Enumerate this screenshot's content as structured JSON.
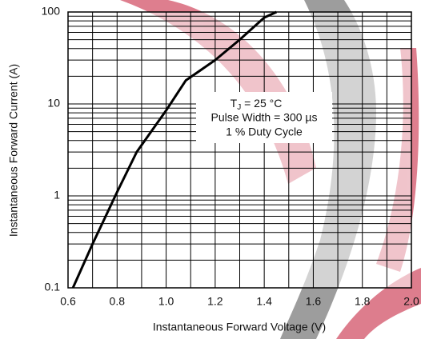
{
  "chart_data": {
    "type": "line",
    "x_label": "Instantaneous Forward Voltage (V)",
    "y_label": "Instantaneous Forward Current (A)",
    "annotation": {
      "t": "T",
      "sub": "J",
      "rest": " = 25 °C",
      "line2": "Pulse Width = 300 µs",
      "line3": "1 % Duty Cycle"
    },
    "x": [
      0.62,
      0.7,
      0.8,
      0.88,
      1.0,
      1.08,
      1.2,
      1.3,
      1.4,
      1.45
    ],
    "series": [
      {
        "name": "TJ = 25 °C",
        "color": "#000000",
        "values": [
          0.1,
          0.3,
          1.1,
          3,
          8.5,
          18,
          30,
          50,
          87,
          100
        ]
      }
    ],
    "xlim": [
      0.6,
      2.0
    ],
    "xticks": [
      0.6,
      0.8,
      {
        "value": 1,
        "label": "1.0"
      },
      1.2,
      1.4,
      1.6,
      1.8,
      {
        "value": 2,
        "label": "2.0"
      }
    ],
    "ylim": [
      0.1,
      100
    ],
    "yticks": [
      0.1,
      1,
      10,
      100
    ],
    "log_y": true,
    "grid": true
  }
}
